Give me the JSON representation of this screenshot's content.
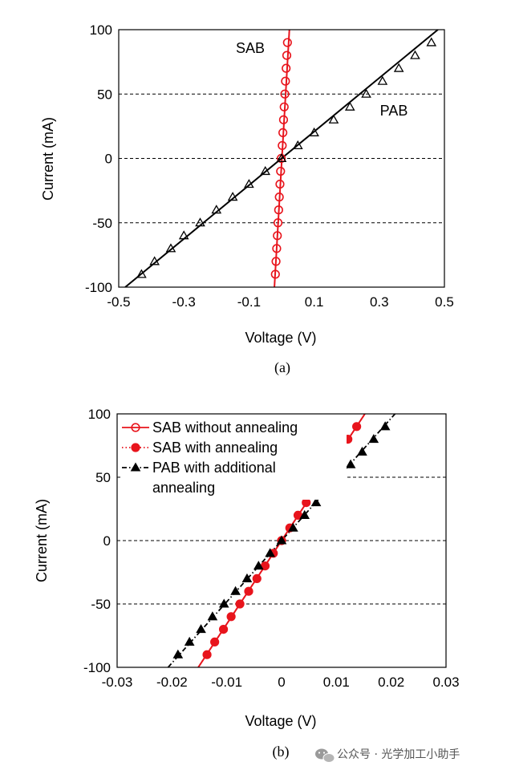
{
  "chart_data": [
    {
      "type": "line",
      "caption": "(a)",
      "xlabel": "Voltage (V)",
      "ylabel": "Current (mA)",
      "xlim": [
        -0.5,
        0.5
      ],
      "ylim": [
        -100,
        100
      ],
      "xticks": [
        "-0.5",
        "-0.3",
        "-0.1",
        "0.1",
        "0.3",
        "0.5"
      ],
      "yticks": [
        "100",
        "50",
        "0",
        "-50",
        "-100"
      ],
      "grid": "horizontal dashed",
      "annotations": [
        "SAB",
        "PAB"
      ],
      "series": [
        {
          "name": "SAB",
          "color": "#e8141c",
          "marker": "open-circle",
          "fit": [
            [
              -0.022,
              -100
            ],
            [
              0.024,
              100
            ]
          ],
          "points": [
            [
              -0.019,
              -90
            ],
            [
              -0.017,
              -80
            ],
            [
              -0.015,
              -70
            ],
            [
              -0.013,
              -60
            ],
            [
              -0.011,
              -50
            ],
            [
              -0.009,
              -40
            ],
            [
              -0.007,
              -30
            ],
            [
              -0.005,
              -20
            ],
            [
              -0.003,
              -10
            ],
            [
              -0.001,
              0
            ],
            [
              0.002,
              10
            ],
            [
              0.004,
              20
            ],
            [
              0.006,
              30
            ],
            [
              0.008,
              40
            ],
            [
              0.01,
              50
            ],
            [
              0.012,
              60
            ],
            [
              0.014,
              70
            ],
            [
              0.016,
              80
            ],
            [
              0.018,
              90
            ]
          ]
        },
        {
          "name": "PAB",
          "color": "#000000",
          "marker": "open-triangle",
          "fit": [
            [
              -0.48,
              -100
            ],
            [
              0.48,
              100
            ]
          ],
          "points": [
            [
              -0.43,
              -90
            ],
            [
              -0.39,
              -80
            ],
            [
              -0.34,
              -70
            ],
            [
              -0.3,
              -60
            ],
            [
              -0.25,
              -50
            ],
            [
              -0.2,
              -40
            ],
            [
              -0.15,
              -30
            ],
            [
              -0.1,
              -20
            ],
            [
              -0.05,
              -10
            ],
            [
              0.0,
              0
            ],
            [
              0.05,
              10
            ],
            [
              0.1,
              20
            ],
            [
              0.16,
              30
            ],
            [
              0.21,
              40
            ],
            [
              0.26,
              50
            ],
            [
              0.31,
              60
            ],
            [
              0.36,
              70
            ],
            [
              0.41,
              80
            ],
            [
              0.46,
              90
            ]
          ]
        }
      ]
    },
    {
      "type": "line",
      "caption": "(b)",
      "xlabel": "Voltage (V)",
      "ylabel": "Current (mA)",
      "xlim": [
        -0.03,
        0.03
      ],
      "ylim": [
        -100,
        100
      ],
      "xticks": [
        "-0.03",
        "-0.02",
        "-0.01",
        "0",
        "0.01",
        "0.02",
        "0.03"
      ],
      "yticks": [
        "100",
        "50",
        "0",
        "-50",
        "-100"
      ],
      "grid": "horizontal dashed",
      "legend_position": "top-left",
      "series": [
        {
          "name": "SAB without annealing",
          "legend_lines": [
            "SAB without annealing"
          ],
          "color": "#e8141c",
          "marker": "open-circle",
          "line": "solid",
          "fit": [
            [
              -0.0152,
              -100
            ],
            [
              0.0152,
              100
            ]
          ],
          "points": []
        },
        {
          "name": "SAB with annealing",
          "legend_lines": [
            "SAB with annealing"
          ],
          "color": "#e8141c",
          "marker": "filled-circle",
          "line": "dotted",
          "fit": [
            [
              -0.0152,
              -100
            ],
            [
              0.0152,
              100
            ]
          ],
          "points": [
            [
              -0.0136,
              -90
            ],
            [
              -0.0122,
              -80
            ],
            [
              -0.0106,
              -70
            ],
            [
              -0.0092,
              -60
            ],
            [
              -0.0076,
              -50
            ],
            [
              -0.006,
              -40
            ],
            [
              -0.0045,
              -30
            ],
            [
              -0.003,
              -20
            ],
            [
              -0.0015,
              -10
            ],
            [
              0.0,
              0
            ],
            [
              0.0015,
              10
            ],
            [
              0.003,
              20
            ],
            [
              0.0045,
              30
            ],
            [
              0.006,
              40
            ],
            [
              0.0076,
              50
            ],
            [
              0.0091,
              60
            ],
            [
              0.0106,
              70
            ],
            [
              0.0121,
              80
            ],
            [
              0.0137,
              90
            ]
          ]
        },
        {
          "name": "PAB with additional annealing",
          "legend_lines": [
            "PAB with additional",
            "annealing"
          ],
          "color": "#000000",
          "marker": "filled-triangle",
          "line": "dash-dot",
          "fit": [
            [
              -0.0207,
              -100
            ],
            [
              0.0207,
              100
            ]
          ],
          "points": [
            [
              -0.0189,
              -90
            ],
            [
              -0.0168,
              -80
            ],
            [
              -0.0147,
              -70
            ],
            [
              -0.0126,
              -60
            ],
            [
              -0.0105,
              -50
            ],
            [
              -0.0084,
              -40
            ],
            [
              -0.0063,
              -30
            ],
            [
              -0.0042,
              -20
            ],
            [
              -0.0021,
              -10
            ],
            [
              0.0,
              0
            ],
            [
              0.0021,
              10
            ],
            [
              0.0042,
              20
            ],
            [
              0.0063,
              30
            ],
            [
              0.0084,
              40
            ],
            [
              0.0105,
              50
            ],
            [
              0.0126,
              60
            ],
            [
              0.0147,
              70
            ],
            [
              0.0168,
              80
            ],
            [
              0.0189,
              90
            ]
          ]
        }
      ]
    }
  ],
  "watermark": {
    "icon": "wechat-icon",
    "text": "公众号 · 光学加工小助手"
  }
}
